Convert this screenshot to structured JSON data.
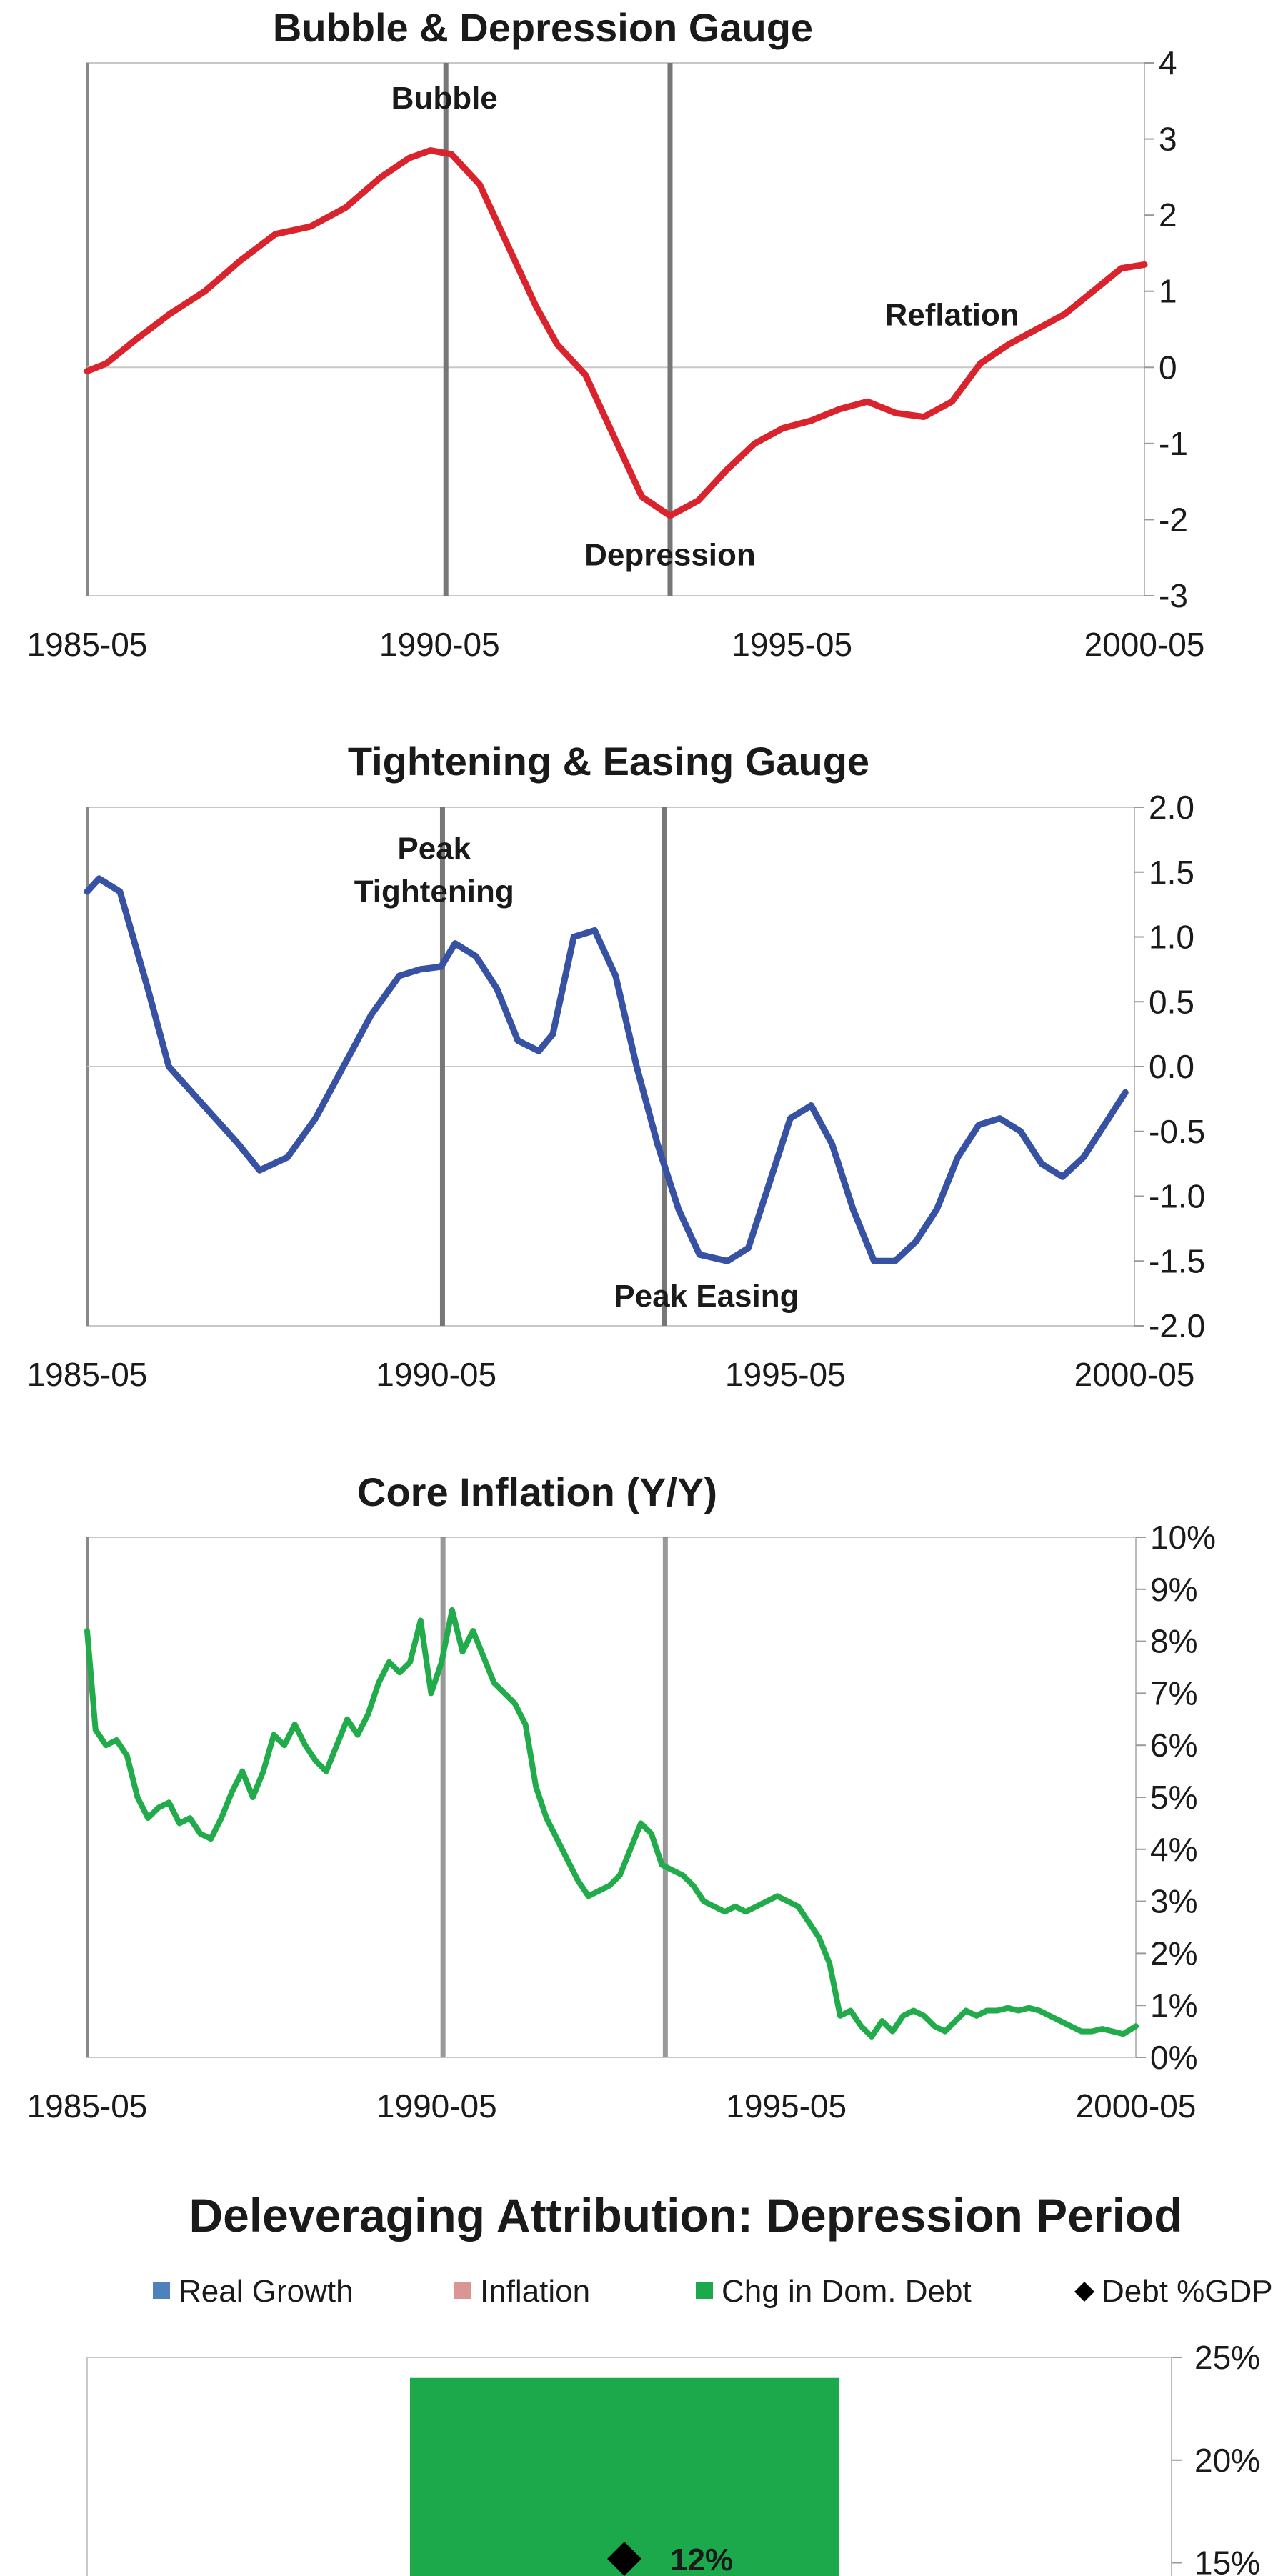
{
  "colors": {
    "bubble_line": "#d9232d",
    "tightening_line": "#3751a3",
    "inflation_line": "#22ab4a",
    "real_growth": "#4f81bd",
    "inflation_bar": "#d99694",
    "debt_bar": "#1ca94c",
    "debt_gdp_marker": "#000000",
    "axis": "#888888",
    "event_line": "#777777"
  },
  "chart_data": [
    {
      "type": "line",
      "title": "Bubble & Depression Gauge",
      "x_ticks": [
        "1985-05",
        "1990-05",
        "1995-05",
        "2000-05"
      ],
      "y_ticks": [
        "4",
        "3",
        "2",
        "1",
        "0",
        "-1",
        "-2",
        "-3"
      ],
      "ylim": [
        -3,
        4
      ],
      "xlim": [
        1985.33,
        2000.33
      ],
      "event_lines": [
        1990.42,
        1993.6
      ],
      "annotations": [
        {
          "text": "Bubble",
          "x": 1990.4,
          "y": 3.4
        },
        {
          "text": "Depression",
          "x": 1993.6,
          "y": -2.6
        },
        {
          "text": "Reflation",
          "x": 1997.6,
          "y": 0.55
        }
      ],
      "series": [
        {
          "x": [
            1985.33,
            1985.6,
            1986.0,
            1986.5,
            1987.0,
            1987.5,
            1988.0,
            1988.5,
            1989.0,
            1989.5,
            1989.9,
            1990.2,
            1990.5,
            1990.9,
            1991.3,
            1991.7,
            1992.0,
            1992.4,
            1992.8,
            1993.2,
            1993.6,
            1994.0,
            1994.4,
            1994.8,
            1995.2,
            1995.6,
            1996.0,
            1996.4,
            1996.8,
            1997.2,
            1997.6,
            1998.0,
            1998.4,
            1998.8,
            1999.2,
            1999.6,
            2000.0,
            2000.33
          ],
          "y": [
            -0.05,
            0.05,
            0.35,
            0.7,
            1.0,
            1.4,
            1.75,
            1.85,
            2.1,
            2.5,
            2.75,
            2.85,
            2.8,
            2.4,
            1.6,
            0.8,
            0.3,
            -0.1,
            -0.9,
            -1.7,
            -1.95,
            -1.75,
            -1.35,
            -1.0,
            -0.8,
            -0.7,
            -0.55,
            -0.45,
            -0.6,
            -0.65,
            -0.45,
            0.05,
            0.3,
            0.5,
            0.7,
            1.0,
            1.3,
            1.35
          ]
        }
      ]
    },
    {
      "type": "line",
      "title": "Tightening & Easing Gauge",
      "x_ticks": [
        "1985-05",
        "1990-05",
        "1995-05",
        "2000-05"
      ],
      "y_ticks": [
        "2.0",
        "1.5",
        "1.0",
        "0.5",
        "0.0",
        "-0.5",
        "-1.0",
        "-1.5",
        "-2.0"
      ],
      "ylim": [
        -2,
        2
      ],
      "xlim": [
        1985.33,
        2000.33
      ],
      "event_lines": [
        1990.42,
        1993.6
      ],
      "annotations": [
        {
          "text": "Peak",
          "x": 1990.3,
          "y": 1.6
        },
        {
          "text": "Tightening",
          "x": 1990.3,
          "y": 1.27
        },
        {
          "text": "Peak Easing",
          "x": 1994.2,
          "y": -1.85
        }
      ],
      "series": [
        {
          "x": [
            1985.33,
            1985.5,
            1985.8,
            1986.2,
            1986.5,
            1987.0,
            1987.5,
            1987.8,
            1988.2,
            1988.6,
            1989.0,
            1989.4,
            1989.8,
            1990.1,
            1990.4,
            1990.6,
            1990.9,
            1991.2,
            1991.5,
            1991.8,
            1992.0,
            1992.3,
            1992.6,
            1992.9,
            1993.2,
            1993.5,
            1993.8,
            1994.1,
            1994.5,
            1994.8,
            1995.1,
            1995.4,
            1995.7,
            1996.0,
            1996.3,
            1996.6,
            1996.9,
            1997.2,
            1997.5,
            1997.8,
            1998.1,
            1998.4,
            1998.7,
            1999.0,
            1999.3,
            1999.6,
            1999.9,
            2000.2
          ],
          "y": [
            1.35,
            1.45,
            1.35,
            0.6,
            0.0,
            -0.3,
            -0.6,
            -0.8,
            -0.7,
            -0.4,
            0.0,
            0.4,
            0.7,
            0.75,
            0.77,
            0.95,
            0.85,
            0.6,
            0.2,
            0.12,
            0.25,
            1.0,
            1.05,
            0.7,
            0.0,
            -0.6,
            -1.1,
            -1.45,
            -1.5,
            -1.4,
            -0.9,
            -0.4,
            -0.3,
            -0.6,
            -1.1,
            -1.5,
            -1.5,
            -1.35,
            -1.1,
            -0.7,
            -0.45,
            -0.4,
            -0.5,
            -0.75,
            -0.85,
            -0.7,
            -0.45,
            -0.2
          ]
        }
      ]
    },
    {
      "type": "line",
      "title": "Core Inflation (Y/Y)",
      "x_ticks": [
        "1985-05",
        "1990-05",
        "1995-05",
        "2000-05"
      ],
      "y_ticks": [
        "10%",
        "9%",
        "8%",
        "7%",
        "6%",
        "5%",
        "4%",
        "3%",
        "2%",
        "1%",
        "0%"
      ],
      "ylim": [
        0,
        10
      ],
      "xlim": [
        1985.33,
        2000.33
      ],
      "event_lines": [
        1990.42,
        1993.6
      ],
      "series": [
        {
          "x": [
            1985.33,
            1985.45,
            1985.6,
            1985.75,
            1985.9,
            1986.05,
            1986.2,
            1986.35,
            1986.5,
            1986.65,
            1986.8,
            1986.95,
            1987.1,
            1987.25,
            1987.4,
            1987.55,
            1987.7,
            1987.85,
            1988.0,
            1988.15,
            1988.3,
            1988.45,
            1988.6,
            1988.75,
            1988.9,
            1989.05,
            1989.2,
            1989.35,
            1989.5,
            1989.65,
            1989.8,
            1989.95,
            1990.1,
            1990.25,
            1990.4,
            1990.55,
            1990.7,
            1990.85,
            1991.0,
            1991.15,
            1991.3,
            1991.45,
            1991.6,
            1991.75,
            1991.9,
            1992.05,
            1992.2,
            1992.35,
            1992.5,
            1992.65,
            1992.8,
            1992.95,
            1993.1,
            1993.25,
            1993.4,
            1993.55,
            1993.7,
            1993.85,
            1994.0,
            1994.15,
            1994.3,
            1994.45,
            1994.6,
            1994.75,
            1994.9,
            1995.05,
            1995.2,
            1995.35,
            1995.5,
            1995.65,
            1995.8,
            1995.95,
            1996.1,
            1996.25,
            1996.4,
            1996.55,
            1996.7,
            1996.85,
            1997.0,
            1997.15,
            1997.3,
            1997.45,
            1997.6,
            1997.75,
            1997.9,
            1998.05,
            1998.2,
            1998.35,
            1998.5,
            1998.65,
            1998.8,
            1998.95,
            1999.1,
            1999.25,
            1999.4,
            1999.55,
            1999.7,
            1999.85,
            2000.0,
            2000.15,
            2000.33
          ],
          "y": [
            8.2,
            6.3,
            6.0,
            6.1,
            5.8,
            5.0,
            4.6,
            4.8,
            4.9,
            4.5,
            4.6,
            4.3,
            4.2,
            4.6,
            5.1,
            5.5,
            5.0,
            5.5,
            6.2,
            6.0,
            6.4,
            6.0,
            5.7,
            5.5,
            6.0,
            6.5,
            6.2,
            6.6,
            7.2,
            7.6,
            7.4,
            7.6,
            8.4,
            7.0,
            7.6,
            8.6,
            7.8,
            8.2,
            7.7,
            7.2,
            7.0,
            6.8,
            6.4,
            5.2,
            4.6,
            4.2,
            3.8,
            3.4,
            3.1,
            3.2,
            3.3,
            3.5,
            4.0,
            4.5,
            4.3,
            3.7,
            3.6,
            3.5,
            3.3,
            3.0,
            2.9,
            2.8,
            2.9,
            2.8,
            2.9,
            3.0,
            3.1,
            3.0,
            2.9,
            2.6,
            2.3,
            1.8,
            0.8,
            0.9,
            0.6,
            0.4,
            0.7,
            0.5,
            0.8,
            0.9,
            0.8,
            0.6,
            0.5,
            0.7,
            0.9,
            0.8,
            0.9,
            0.9,
            0.95,
            0.9,
            0.95,
            0.9,
            0.8,
            0.7,
            0.6,
            0.5,
            0.5,
            0.55,
            0.5,
            0.45,
            0.6
          ]
        }
      ]
    },
    {
      "type": "bar",
      "title": "Deleveraging Attribution: Depression Period",
      "legend": [
        "Real Growth",
        "Inflation",
        "Chg in Dom. Debt",
        "Debt %GDP"
      ],
      "legend_position": "top",
      "y_ticks": [
        "25%",
        "20%",
        "15%"
      ],
      "ylim": [
        9,
        25
      ],
      "series": [
        {
          "name": "Chg in Dom. Debt",
          "value": 24
        },
        {
          "name": "Debt %GDP",
          "value": 12,
          "label": "12%"
        }
      ]
    }
  ]
}
